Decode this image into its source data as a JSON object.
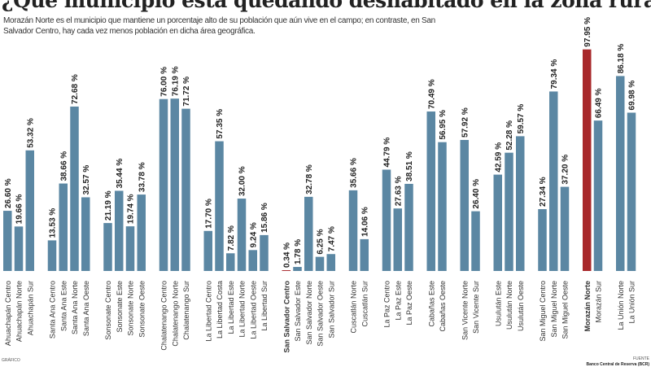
{
  "title": "¿Qué municipio está quedando deshabitado en la zona rural?",
  "subtitle": "Morazán Norte es el municipio que mantiene un porcentaje alto de su población que aún vive en el campo; en contraste, en San Salvador Centro, hay cada vez menos población en dicha área geográfica.",
  "footer": {
    "left": "GRÁFICO",
    "right_label": "FUENTE",
    "right_source": "Banco Central de Reserva (BCR)"
  },
  "colors": {
    "bar": "#5b87a3",
    "highlight": "#a8282b",
    "highlight_text": "#b0282b"
  },
  "chart_data": {
    "type": "bar",
    "ylim": [
      0,
      100
    ],
    "grid": false,
    "unit": "%",
    "groups": [
      {
        "name": "Ahuachapán",
        "categories": [
          "Ahuachapán Centro",
          "Ahuachapán Norte",
          "Ahuachapán Sur"
        ],
        "values": [
          26.6,
          19.66,
          53.32
        ]
      },
      {
        "name": "Santa Ana",
        "categories": [
          "Santa Ana Centro",
          "Santa Ana Este",
          "Santa Ana Norte",
          "Santa Ana Oeste"
        ],
        "values": [
          13.53,
          38.66,
          72.68,
          32.57
        ]
      },
      {
        "name": "Sonsonate",
        "categories": [
          "Sonsonate Centro",
          "Sonsonate Este",
          "Sonsonate Norte",
          "Sonsonate Oeste"
        ],
        "values": [
          21.19,
          35.44,
          19.74,
          33.78
        ]
      },
      {
        "name": "Chalatenango",
        "categories": [
          "Chalatenango Centro",
          "Chalatenango Norte",
          "Chalatenango Sur"
        ],
        "values": [
          76.0,
          76.19,
          71.72
        ]
      },
      {
        "name": "La Libertad",
        "categories": [
          "La Libertad Centro",
          "La Libertad Costa",
          "La Libertad Este",
          "La Libertad Norte",
          "La Libertad Oeste",
          "La Libertad Sur"
        ],
        "values": [
          17.7,
          57.35,
          7.82,
          32.0,
          9.24,
          15.86
        ]
      },
      {
        "name": "San Salvador",
        "categories": [
          "San Salvador Centro",
          "San Salvador Este",
          "San Salvador Norte",
          "San Salvador Oeste",
          "San Salvador Sur"
        ],
        "values": [
          0.34,
          1.78,
          32.78,
          6.25,
          7.47
        ],
        "highlight": [
          0
        ]
      },
      {
        "name": "Cuscatlán",
        "categories": [
          "Cuscatlán Norte",
          "Cuscatlán Sur"
        ],
        "values": [
          35.66,
          14.06
        ]
      },
      {
        "name": "La Paz",
        "categories": [
          "La Paz Centro",
          "La Paz Este",
          "La Paz Oeste"
        ],
        "values": [
          44.79,
          27.63,
          38.51
        ]
      },
      {
        "name": "Cabañas",
        "categories": [
          "Cabañas Este",
          "Cabañas Oeste"
        ],
        "values": [
          70.49,
          56.95
        ]
      },
      {
        "name": "San Vicente",
        "categories": [
          "San Vicente Norte",
          "San Vicente Sur"
        ],
        "values": [
          57.92,
          26.4
        ]
      },
      {
        "name": "Usulután",
        "categories": [
          "Usulután Este",
          "Usulután Norte",
          "Usulután Oeste"
        ],
        "values": [
          42.59,
          52.28,
          59.57
        ]
      },
      {
        "name": "San Miguel",
        "categories": [
          "San Miguel Centro",
          "San Miguel Norte",
          "San Miguel Oeste"
        ],
        "values": [
          27.34,
          79.34,
          37.2
        ]
      },
      {
        "name": "Morazán",
        "categories": [
          "Morazán Norte",
          "Morazán Sur"
        ],
        "values": [
          97.95,
          66.49
        ],
        "highlight": [
          0
        ]
      },
      {
        "name": "La Unión",
        "categories": [
          "La Unión Norte",
          "La Unión Sur"
        ],
        "values": [
          86.18,
          69.98
        ]
      }
    ]
  }
}
